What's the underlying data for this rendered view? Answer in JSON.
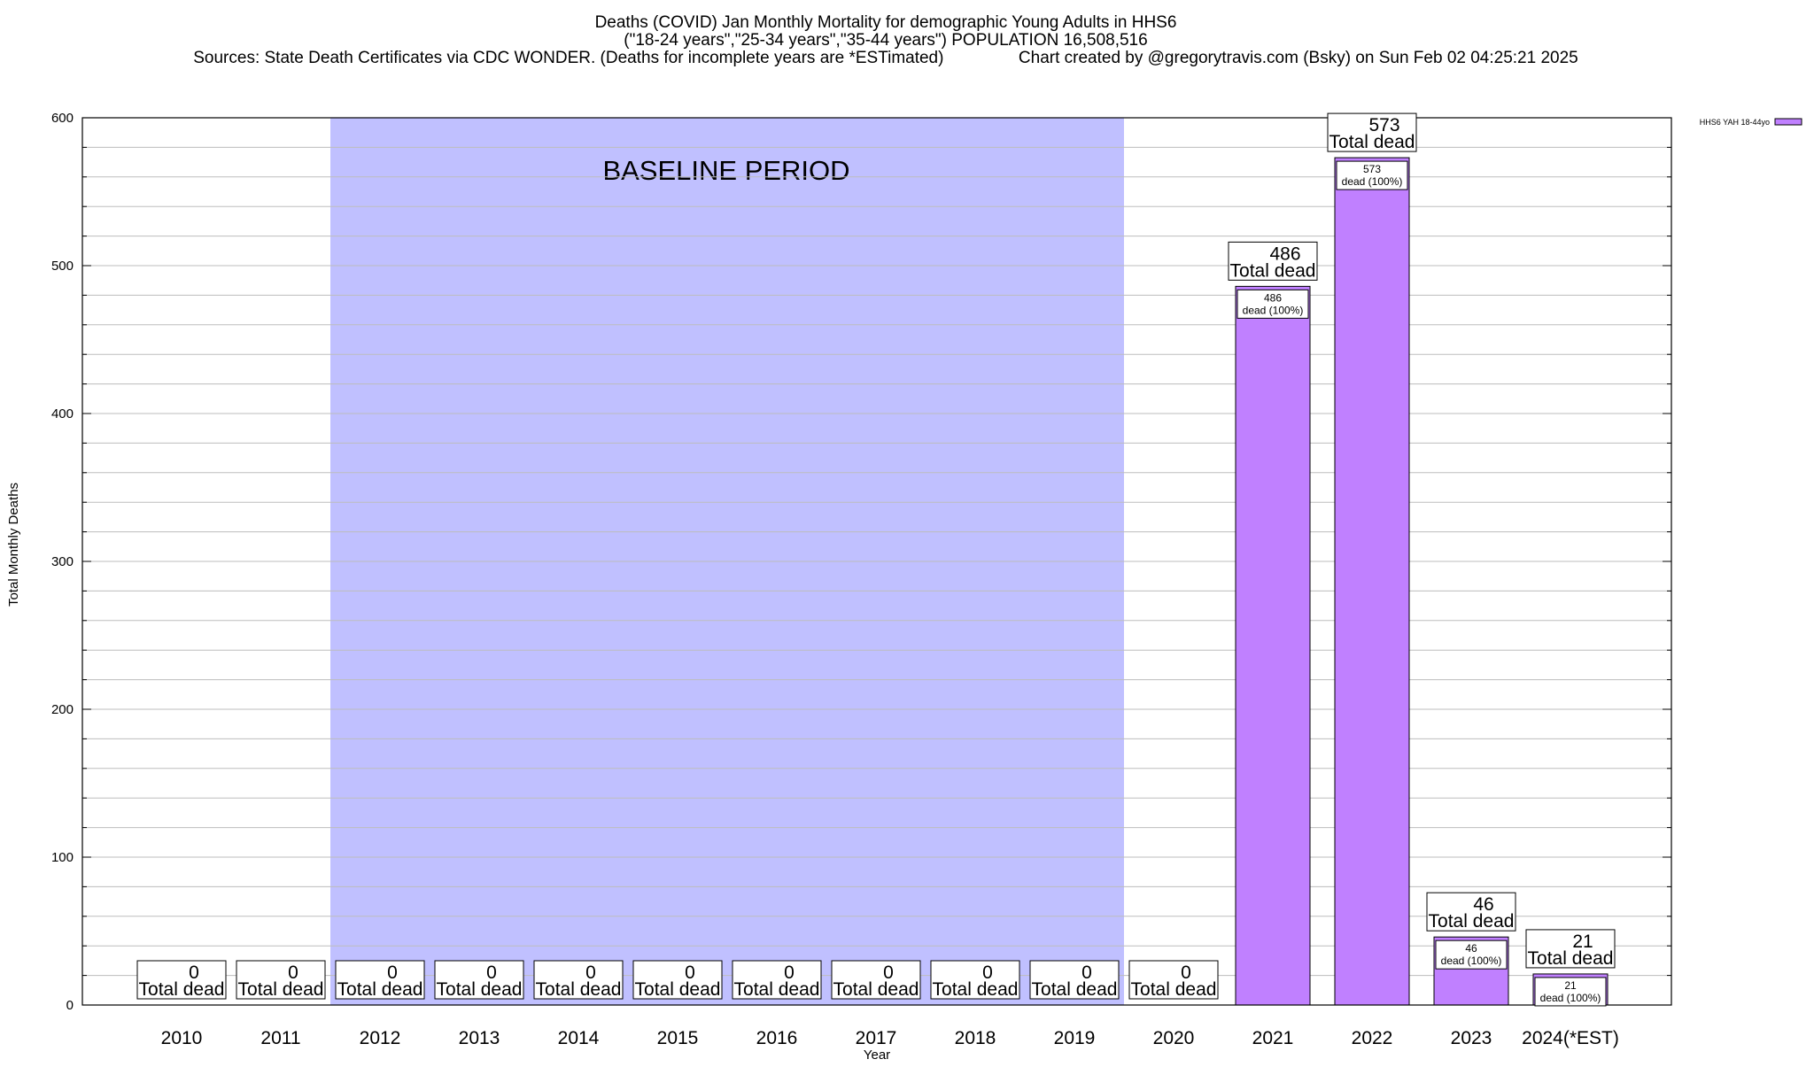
{
  "chart_data": {
    "type": "bar",
    "title_lines": [
      "Deaths (COVID) Jan Monthly Mortality for demographic Young Adults in HHS6",
      "(\"18-24 years\",\"25-34 years\",\"35-44 years\") POPULATION 16,508,516",
      "Sources: State Death Certificates via CDC WONDER. (Deaths for incomplete years are *ESTimated)                Chart created by @gregorytravis.com (Bsky) on Sun Feb 02 04:25:21 2025"
    ],
    "xlabel": "Year",
    "ylabel": "Total Monthly Deaths",
    "ylim": [
      0,
      600
    ],
    "y_ticks": [
      0,
      100,
      200,
      300,
      400,
      500,
      600
    ],
    "grid": true,
    "categories": [
      "2010",
      "2011",
      "2012",
      "2013",
      "2014",
      "2015",
      "2016",
      "2017",
      "2018",
      "2019",
      "2020",
      "2021",
      "2022",
      "2023",
      "2024(*EST)"
    ],
    "values": [
      0,
      0,
      0,
      0,
      0,
      0,
      0,
      0,
      0,
      0,
      0,
      486,
      573,
      46,
      21
    ],
    "total_label": "Total dead",
    "inner_label": "dead (100%)",
    "baseline": {
      "label": "BASELINE PERIOD",
      "from": "2012",
      "to": "2019",
      "color": "#c0c0ff"
    },
    "legend": {
      "position": "top-right",
      "entries": [
        {
          "name": "HHS6 YAH 18-44yo",
          "color": "#c080ff"
        }
      ]
    },
    "bar_color": "#c080ff"
  }
}
